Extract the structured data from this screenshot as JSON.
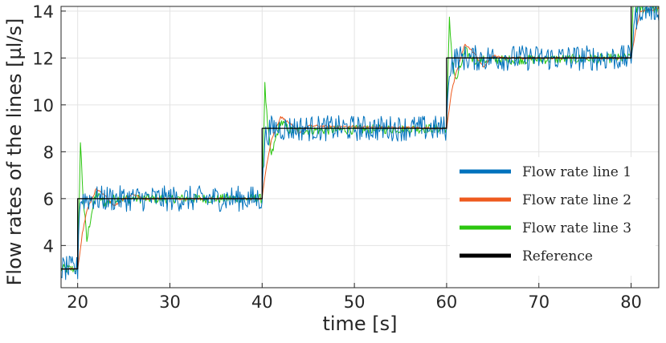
{
  "chart_data": {
    "type": "line",
    "xlabel": "time [s]",
    "ylabel": "Flow rates of the lines [µl/s]",
    "xlim": [
      18.2,
      83.0
    ],
    "ylim": [
      2.2,
      14.2
    ],
    "xticks": [
      20,
      30,
      40,
      50,
      60,
      70,
      80
    ],
    "yticks": [
      4,
      6,
      8,
      10,
      12,
      14
    ],
    "xtick_labels": [
      "20",
      "30",
      "40",
      "50",
      "60",
      "70",
      "80"
    ],
    "ytick_labels": [
      "4",
      "6",
      "8",
      "10",
      "12",
      "14"
    ],
    "grid": true,
    "legend_position": "lower-right",
    "series": [
      {
        "name": "Flow rate line 1",
        "color": "#0072BD",
        "x": [
          18.2,
          20,
          20.2,
          20.5,
          21,
          22,
          40,
          40.3,
          41,
          60,
          60.3,
          61,
          80,
          80.3,
          81,
          83
        ],
        "y": [
          3.0,
          3.0,
          5.8,
          6.0,
          6.0,
          6.0,
          6.0,
          8.6,
          9.0,
          9.0,
          11.6,
          12.0,
          12.0,
          13.5,
          14.1,
          14.1
        ],
        "noise_amplitude": 0.55
      },
      {
        "name": "Flow rate line 2",
        "color": "#EE5A1E",
        "x": [
          18.2,
          20,
          20.5,
          21,
          22,
          23,
          24,
          25,
          26,
          27,
          40,
          40.5,
          41,
          42,
          43,
          44,
          45,
          60,
          60.5,
          61,
          62,
          63,
          64,
          65,
          66,
          80,
          80.5,
          81,
          83
        ],
        "y": [
          3.0,
          3.0,
          4.5,
          5.5,
          6.4,
          6.1,
          5.7,
          6.0,
          6.2,
          6.0,
          6.0,
          7.5,
          8.5,
          9.5,
          9.2,
          8.8,
          9.1,
          9.0,
          10.5,
          11.3,
          12.6,
          12.2,
          11.6,
          12.1,
          12.0,
          12.0,
          13.2,
          14.0,
          14.1
        ],
        "noise_amplitude": 0.05
      },
      {
        "name": "Flow rate line 3",
        "color": "#2BC60F",
        "x": [
          18.2,
          20,
          20.3,
          20.6,
          21,
          21.5,
          22,
          23,
          24,
          40,
          40.3,
          40.6,
          41,
          41.5,
          42,
          43,
          60,
          60.3,
          60.6,
          61,
          61.5,
          62,
          63,
          80,
          80.3,
          80.6,
          83
        ],
        "y": [
          3.0,
          3.0,
          8.4,
          6.0,
          4.2,
          5.4,
          6.2,
          5.8,
          6.0,
          6.0,
          10.8,
          9.0,
          7.8,
          8.6,
          9.3,
          8.9,
          9.0,
          13.6,
          12.0,
          11.0,
          11.6,
          12.3,
          11.9,
          12.0,
          15.0,
          14.1,
          14.1
        ],
        "noise_amplitude": 0.2
      },
      {
        "name": "Reference",
        "color": "#000000",
        "x": [
          18.2,
          20,
          20,
          40,
          40,
          60,
          60,
          80,
          80,
          83
        ],
        "y": [
          3,
          3,
          6,
          6,
          9,
          9,
          12,
          12,
          15,
          15
        ],
        "noise_amplitude": 0
      }
    ]
  }
}
